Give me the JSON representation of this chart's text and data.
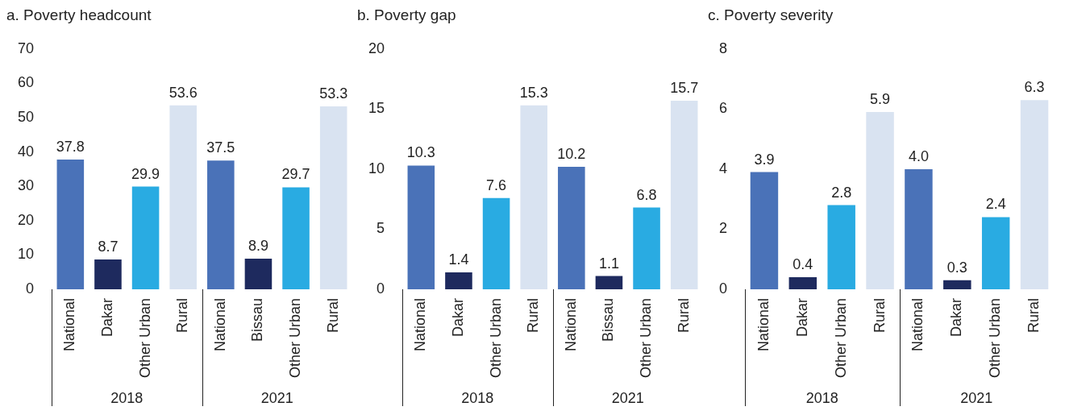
{
  "chart_data": [
    {
      "type": "bar",
      "title": "a. Poverty headcount",
      "categories": [
        "National",
        "Dakar",
        "Other Urban",
        "Rural",
        "National",
        "Bissau",
        "Other Urban",
        "Rural"
      ],
      "values": [
        37.8,
        8.7,
        29.9,
        53.6,
        37.5,
        8.9,
        29.7,
        53.3
      ],
      "value_labels": [
        "37.8",
        "8.7",
        "29.9",
        "53.6",
        "37.5",
        "8.9",
        "29.7",
        "53.3"
      ],
      "colors": [
        "#4a72b8",
        "#1e2a5e",
        "#29abe2",
        "#d9e3f1",
        "#4a72b8",
        "#1e2a5e",
        "#29abe2",
        "#d9e3f1"
      ],
      "ylim": [
        0,
        70
      ],
      "yticks": [
        0,
        10,
        20,
        30,
        40,
        50,
        60,
        70
      ],
      "annotations": [
        "2018",
        "2021"
      ]
    },
    {
      "type": "bar",
      "title": "b. Poverty gap",
      "categories": [
        "National",
        "Dakar",
        "Other Urban",
        "Rural",
        "National",
        "Bissau",
        "Other Urban",
        "Rural"
      ],
      "values": [
        10.3,
        1.4,
        7.6,
        15.3,
        10.2,
        1.1,
        6.8,
        15.7
      ],
      "value_labels": [
        "10.3",
        "1.4",
        "7.6",
        "15.3",
        "10.2",
        "1.1",
        "6.8",
        "15.7"
      ],
      "colors": [
        "#4a72b8",
        "#1e2a5e",
        "#29abe2",
        "#d9e3f1",
        "#4a72b8",
        "#1e2a5e",
        "#29abe2",
        "#d9e3f1"
      ],
      "ylim": [
        0,
        20
      ],
      "yticks": [
        0,
        5,
        10,
        15,
        20
      ],
      "annotations": [
        "2018",
        "2021"
      ]
    },
    {
      "type": "bar",
      "title": "c. Poverty severity",
      "categories": [
        "National",
        "Dakar",
        "Other Urban",
        "Rural",
        "National",
        "Dakar",
        "Other Urban",
        "Rural"
      ],
      "values": [
        3.9,
        0.4,
        2.8,
        5.9,
        4.0,
        0.3,
        2.4,
        6.3
      ],
      "value_labels": [
        "3.9",
        "0.4",
        "2.8",
        "5.9",
        "4.0",
        "0.3",
        "2.4",
        "6.3"
      ],
      "colors": [
        "#4a72b8",
        "#1e2a5e",
        "#29abe2",
        "#d9e3f1",
        "#4a72b8",
        "#1e2a5e",
        "#29abe2",
        "#d9e3f1"
      ],
      "ylim": [
        0,
        8
      ],
      "yticks": [
        0,
        2,
        4,
        6,
        8
      ],
      "annotations": [
        "2018",
        "2021"
      ]
    }
  ]
}
